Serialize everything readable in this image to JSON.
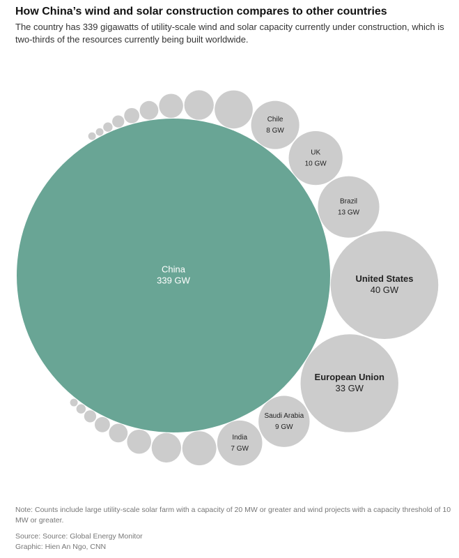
{
  "chart_data": {
    "type": "bubble",
    "title": "How China’s wind and solar construction compares to other countries",
    "subtitle": "The country has 339 gigawatts of utility-scale wind and solar capacity currently under construction, which is two-thirds of the resources currently being built worldwide.",
    "categories": [
      "China",
      null,
      null,
      null,
      null,
      null,
      null,
      null,
      null,
      null,
      "Chile",
      "UK",
      "Brazil",
      "United States",
      "European Union",
      "Saudi Arabia",
      "India",
      null,
      null,
      null,
      null,
      null,
      null,
      null,
      null
    ],
    "values": [
      339,
      0.2,
      0.2,
      0.3,
      0.5,
      0.8,
      1.2,
      2,
      3,
      5,
      8,
      10,
      13,
      40,
      33,
      9,
      7,
      4,
      3,
      2,
      1.2,
      0.8,
      0.5,
      0.3,
      0.2
    ],
    "value_labels": [
      "339 GW",
      null,
      null,
      null,
      null,
      null,
      null,
      null,
      null,
      null,
      "8 GW",
      "10 GW",
      "13 GW",
      "40 GW",
      "33 GW",
      "9 GW",
      "7 GW",
      null,
      null,
      null,
      null,
      null,
      null,
      null,
      null
    ],
    "colors": [
      "#69a595",
      "#cccccc",
      "#cccccc",
      "#cccccc",
      "#cccccc",
      "#cccccc",
      "#cccccc",
      "#cccccc",
      "#cccccc",
      "#cccccc",
      "#cccccc",
      "#cccccc",
      "#cccccc",
      "#cccccc",
      "#cccccc",
      "#cccccc",
      "#cccccc",
      "#cccccc",
      "#cccccc",
      "#cccccc",
      "#cccccc",
      "#cccccc",
      "#cccccc",
      "#cccccc",
      "#cccccc"
    ],
    "note": "Note: Counts include large utility-scale solar farm with a capacity of 20 MW or greater and wind projects with a capacity threshold of 10 MW or greater.",
    "source": "Source: Source: Global Energy Monitor",
    "credit": "Graphic: Hien An Ngo, CNN"
  }
}
